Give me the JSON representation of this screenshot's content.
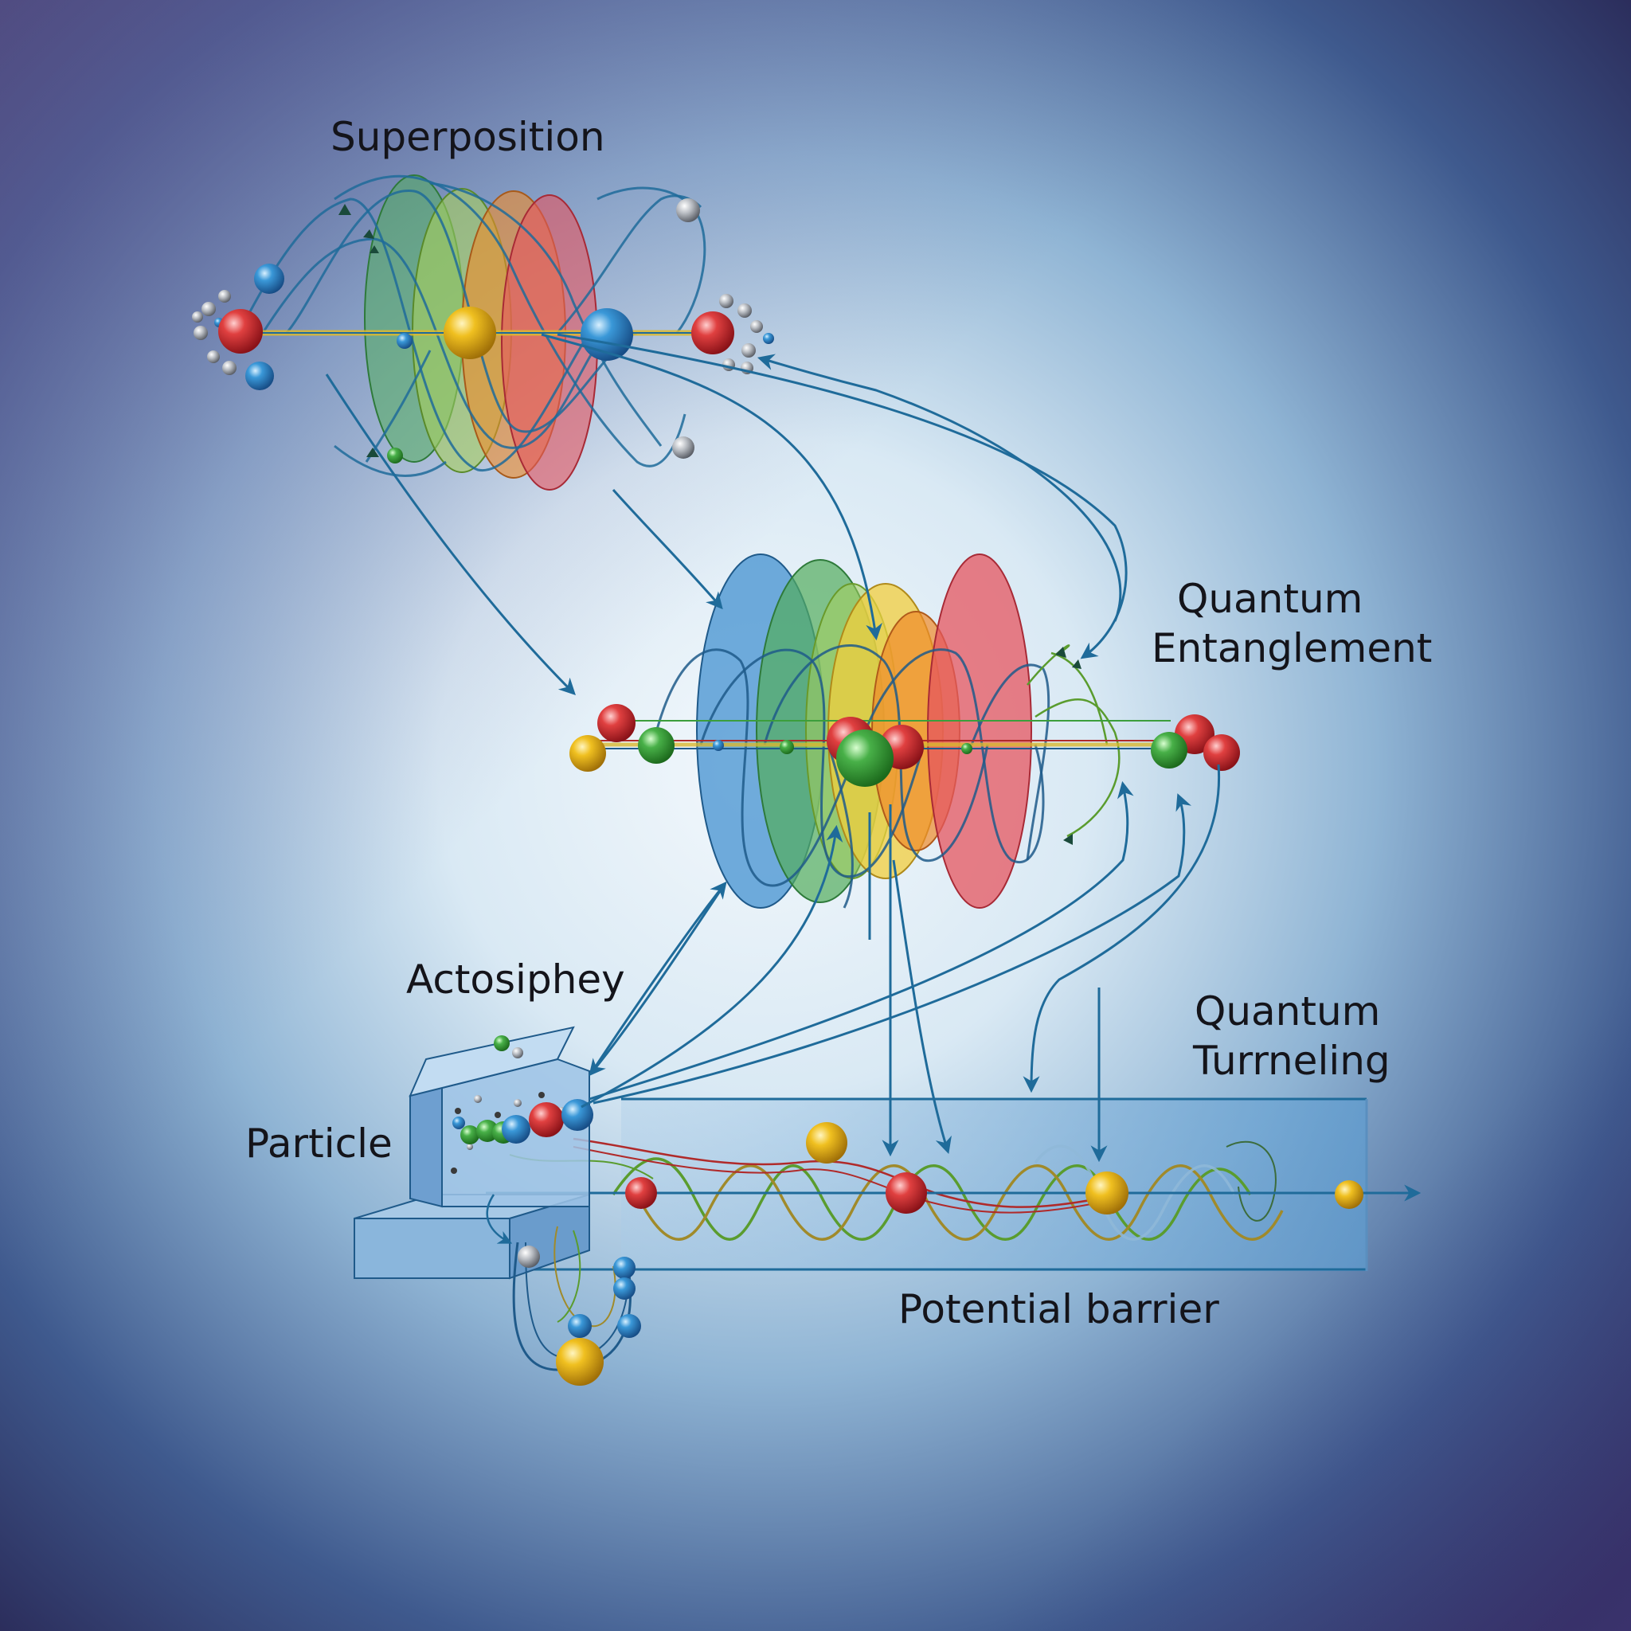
{
  "labels": {
    "superposition": "Superposition",
    "entanglement_line1": "Quantum",
    "entanglement_line2": "Entanglement",
    "actosiphey": "Actosiphey",
    "tunneling_line1": "Quantum",
    "tunneling_line2": "Turrneling",
    "particle": "Particle",
    "potential_barrier": "Potential barrier"
  },
  "colors": {
    "background_center": "#f3f8fc",
    "background_mid": "#8fb4d4",
    "background_edge": "#2c3f72",
    "background_corner": "#352c5a",
    "arrow": "#1f6b9a",
    "lobe_blue": "#3d8ecf",
    "lobe_green": "#52ad5c",
    "lobe_lightgreen": "#a6cf5c",
    "lobe_yellow": "#f2ce3d",
    "lobe_orange": "#ef8a2a",
    "lobe_red": "#e5555f",
    "particle_red": "#d42a30",
    "particle_blue": "#2d86c8",
    "particle_gold": "#e4b41e",
    "particle_green": "#3c9e3c",
    "barrier": "#7fb0da",
    "wave_green": "#5a9c2e",
    "wave_olive": "#a08a2a",
    "wave_red": "#b02a2a",
    "wave_pale": "#8fb8d8"
  }
}
